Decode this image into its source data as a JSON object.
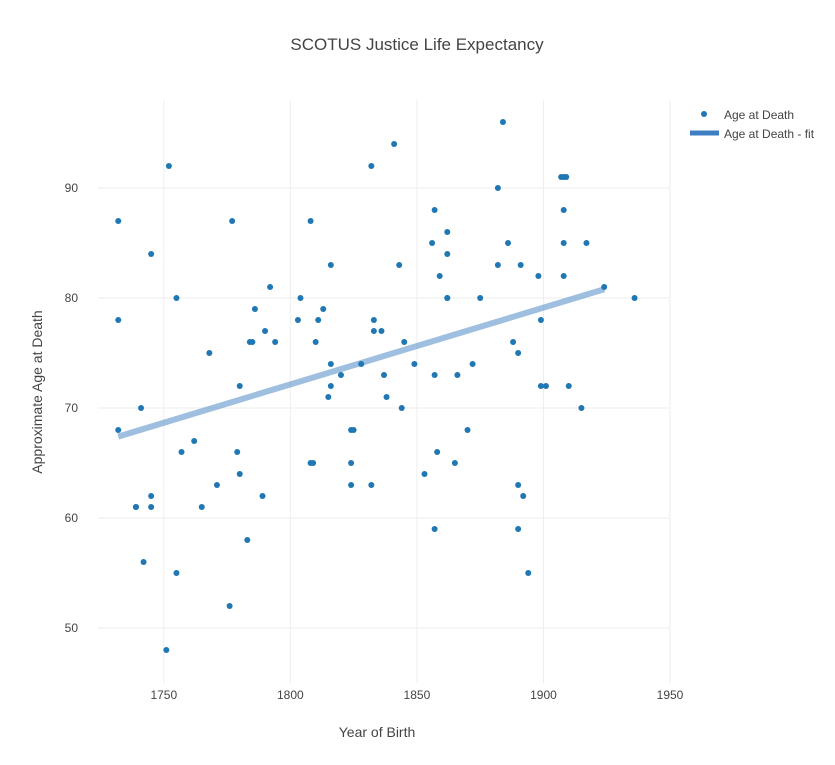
{
  "chart_data": {
    "type": "scatter",
    "title": "SCOTUS Justice Life Expectancy",
    "xlabel": "Year of Birth",
    "ylabel": "Approximate Age at Death",
    "xlim": [
      1724,
      1950
    ],
    "ylim": [
      45,
      98
    ],
    "xticks": [
      1750,
      1800,
      1850,
      1900,
      1950
    ],
    "yticks": [
      50,
      60,
      70,
      80,
      90
    ],
    "grid": true,
    "legend_position": "top-right",
    "colors": {
      "points": "#1f77b4",
      "fit": "#3d7fc2"
    },
    "series": [
      {
        "name": "Age at Death",
        "mode": "markers",
        "x": [
          1732,
          1732,
          1732,
          1739,
          1739,
          1741,
          1742,
          1745,
          1745,
          1745,
          1751,
          1752,
          1755,
          1755,
          1757,
          1762,
          1765,
          1768,
          1771,
          1776,
          1777,
          1779,
          1780,
          1780,
          1783,
          1784,
          1785,
          1786,
          1789,
          1790,
          1792,
          1794,
          1803,
          1804,
          1808,
          1808,
          1809,
          1810,
          1811,
          1813,
          1815,
          1816,
          1816,
          1816,
          1820,
          1824,
          1824,
          1824,
          1825,
          1828,
          1832,
          1832,
          1833,
          1833,
          1836,
          1837,
          1838,
          1841,
          1843,
          1844,
          1845,
          1849,
          1853,
          1856,
          1857,
          1857,
          1857,
          1858,
          1859,
          1862,
          1862,
          1862,
          1862,
          1865,
          1866,
          1870,
          1872,
          1875,
          1882,
          1882,
          1884,
          1886,
          1888,
          1890,
          1890,
          1890,
          1891,
          1892,
          1894,
          1898,
          1899,
          1899,
          1901,
          1907,
          1908,
          1908,
          1908,
          1908,
          1909,
          1910,
          1915,
          1917,
          1924,
          1936
        ],
        "y": [
          87,
          78,
          68,
          61,
          61,
          70,
          56,
          84,
          62,
          61,
          48,
          92,
          80,
          55,
          66,
          67,
          61,
          75,
          63,
          52,
          87,
          66,
          72,
          64,
          58,
          76,
          76,
          79,
          62,
          77,
          81,
          76,
          78,
          80,
          87,
          65,
          65,
          76,
          78,
          79,
          71,
          83,
          74,
          72,
          73,
          63,
          65,
          68,
          68,
          74,
          92,
          63,
          78,
          77,
          77,
          73,
          71,
          94,
          83,
          70,
          76,
          74,
          64,
          85,
          88,
          73,
          59,
          66,
          82,
          86,
          84,
          80,
          80,
          65,
          73,
          68,
          74,
          80,
          90,
          83,
          96,
          85,
          76,
          75,
          63,
          59,
          83,
          62,
          55,
          82,
          78,
          72,
          72,
          91,
          91,
          88,
          82,
          85,
          91,
          72,
          70,
          85,
          81,
          80
        ]
      },
      {
        "name": "Age at Death - fit",
        "mode": "lines",
        "x": [
          1732,
          1924
        ],
        "y": [
          67.4,
          80.8
        ]
      }
    ]
  }
}
